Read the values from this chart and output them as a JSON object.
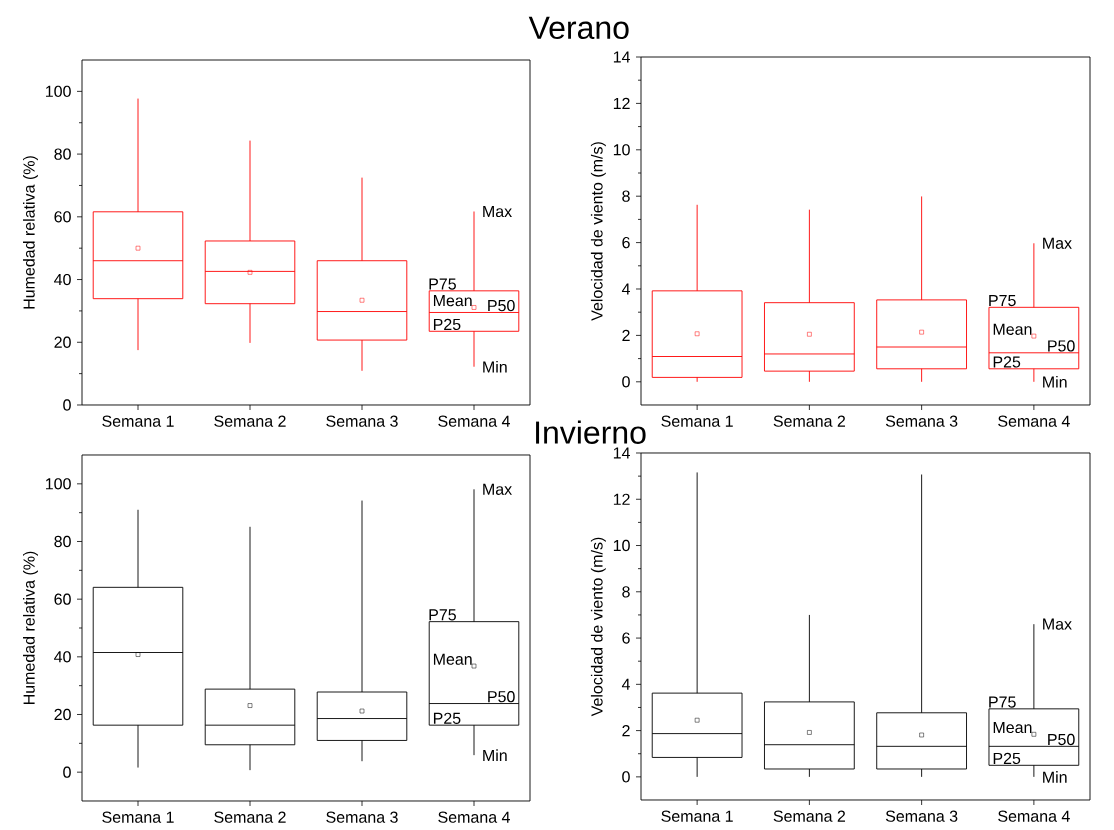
{
  "chart_data": [
    {
      "type": "box",
      "title": "Verano",
      "ylabel": "Humedad relativa (%)",
      "categories": [
        "Semana 1",
        "Semana 2",
        "Semana 3",
        "Semana 4"
      ],
      "ylim": [
        0,
        110
      ],
      "yticks": [
        0,
        20,
        40,
        60,
        80,
        100
      ],
      "series": [
        {
          "color": "#ff0000",
          "boxes": [
            {
              "low": 17.5,
              "q1": 33.9,
              "median": 46,
              "q3": 61.6,
              "high": 97.7,
              "mean": 50
            },
            {
              "low": 19.8,
              "q1": 32.3,
              "median": 42.6,
              "q3": 52.3,
              "high": 84.3,
              "mean": 42.3
            },
            {
              "low": 10.9,
              "q1": 20.7,
              "median": 29.8,
              "q3": 46,
              "high": 72.5,
              "mean": 33.4
            },
            {
              "low": 12.2,
              "q1": 23.5,
              "median": 29.5,
              "q3": 36.4,
              "high": 61.7,
              "mean": 31.1
            }
          ]
        }
      ],
      "annotations": [
        "Max",
        "P75",
        "Mean",
        "P50",
        "P25",
        "Min"
      ]
    },
    {
      "type": "box",
      "ylabel": "Velocidad de viento (m/s)",
      "categories": [
        "Semana 1",
        "Semana 2",
        "Semana 3",
        "Semana 4"
      ],
      "ylim": [
        -1,
        14
      ],
      "yticks": [
        0,
        2,
        4,
        6,
        8,
        10,
        12,
        14
      ],
      "series": [
        {
          "color": "#ff0000",
          "boxes": [
            {
              "low": 0,
              "q1": 0.19,
              "median": 1.09,
              "q3": 3.92,
              "high": 7.63,
              "mean": 2.07
            },
            {
              "low": 0,
              "q1": 0.46,
              "median": 1.2,
              "q3": 3.41,
              "high": 7.42,
              "mean": 2.05
            },
            {
              "low": 0,
              "q1": 0.56,
              "median": 1.5,
              "q3": 3.53,
              "high": 7.99,
              "mean": 2.14
            },
            {
              "low": 0,
              "q1": 0.56,
              "median": 1.25,
              "q3": 3.21,
              "high": 5.97,
              "mean": 1.97
            }
          ]
        }
      ],
      "annotations": [
        "Max",
        "P75",
        "Mean",
        "P50",
        "P25",
        "Min"
      ]
    },
    {
      "type": "box",
      "title": "Invierno",
      "ylabel": "Humedad relativa (%)",
      "categories": [
        "Semana 1",
        "Semana 2",
        "Semana 3",
        "Semana 4"
      ],
      "ylim": [
        -10,
        110
      ],
      "yticks": [
        0,
        20,
        40,
        60,
        80,
        100
      ],
      "series": [
        {
          "color": "#000000",
          "boxes": [
            {
              "low": 1.6,
              "q1": 16.3,
              "median": 41.5,
              "q3": 64.1,
              "high": 91,
              "mean": 40.8
            },
            {
              "low": 0.7,
              "q1": 9.5,
              "median": 16.3,
              "q3": 28.8,
              "high": 85.1,
              "mean": 23.1
            },
            {
              "low": 3.8,
              "q1": 11,
              "median": 18.6,
              "q3": 27.8,
              "high": 94.2,
              "mean": 21.2
            },
            {
              "low": 5.9,
              "q1": 16.3,
              "median": 23.8,
              "q3": 52.2,
              "high": 98.1,
              "mean": 36.8
            }
          ]
        }
      ],
      "annotations": [
        "Max",
        "P75",
        "Mean",
        "P50",
        "P25",
        "Min"
      ]
    },
    {
      "type": "box",
      "ylabel": "Velocidad de viento (m/s)",
      "categories": [
        "Semana 1",
        "Semana 2",
        "Semana 3",
        "Semana 4"
      ],
      "ylim": [
        -1,
        14
      ],
      "yticks": [
        0,
        2,
        4,
        6,
        8,
        10,
        12,
        14
      ],
      "series": [
        {
          "color": "#000000",
          "boxes": [
            {
              "low": 0,
              "q1": 0.84,
              "median": 1.87,
              "q3": 3.62,
              "high": 13.16,
              "mean": 2.45
            },
            {
              "low": 0,
              "q1": 0.34,
              "median": 1.39,
              "q3": 3.24,
              "high": 7.0,
              "mean": 1.92
            },
            {
              "low": 0,
              "q1": 0.34,
              "median": 1.32,
              "q3": 2.77,
              "high": 13.07,
              "mean": 1.81
            },
            {
              "low": 0,
              "q1": 0.5,
              "median": 1.32,
              "q3": 2.94,
              "high": 6.6,
              "mean": 1.84
            }
          ]
        }
      ],
      "annotations": [
        "Max",
        "P75",
        "Mean",
        "P50",
        "P25",
        "Min"
      ]
    }
  ]
}
